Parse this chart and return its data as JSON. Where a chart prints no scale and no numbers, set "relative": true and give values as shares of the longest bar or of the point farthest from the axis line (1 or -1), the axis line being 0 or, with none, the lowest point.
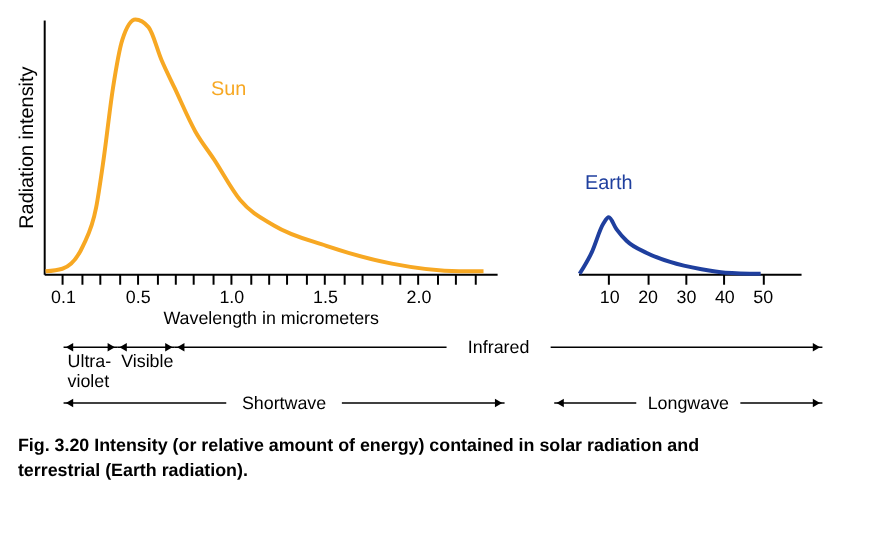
{
  "chart_data": [
    {
      "type": "line",
      "relative": true,
      "xlabel": "Wavelength in micrometers",
      "ylabel": "Radiation intensity",
      "xlim": [
        0,
        2.42
      ],
      "xticks": [
        0.1,
        {
          "value": 0.2,
          "label": null
        },
        {
          "value": 0.3,
          "label": null
        },
        {
          "value": 0.4,
          "label": null
        },
        0.5,
        {
          "value": 0.6,
          "label": null
        },
        {
          "value": 0.7,
          "label": null
        },
        {
          "value": 0.8,
          "label": null
        },
        {
          "value": 0.9,
          "label": null
        },
        {
          "value": 1,
          "label": "1.0"
        },
        {
          "value": 1.1,
          "label": null
        },
        {
          "value": 1.2,
          "label": null
        },
        {
          "value": 1.3,
          "label": null
        },
        {
          "value": 1.4,
          "label": null
        },
        1.5,
        {
          "value": 1.6,
          "label": null
        },
        {
          "value": 1.7,
          "label": null
        },
        {
          "value": 1.8,
          "label": null
        },
        {
          "value": 1.9,
          "label": null
        },
        {
          "value": 2,
          "label": "2.0"
        },
        {
          "value": 2.1,
          "label": null
        },
        {
          "value": 2.2,
          "label": null
        },
        {
          "value": 2.3,
          "label": null
        }
      ],
      "tick_labels": "x",
      "grid": false,
      "marker": "none",
      "line_style": "solid",
      "series": [
        {
          "name": "Sun",
          "color": "#f7a823",
          "x": [
            0.01,
            0.1,
            0.21,
            0.28,
            0.32,
            0.37,
            0.42,
            0.49,
            0.56,
            0.63,
            0.7,
            0.81,
            0.91,
            1.05,
            1.23,
            1.51,
            1.86,
            2.22,
            2.35
          ],
          "values": [
            0.01,
            0.02,
            0.11,
            0.26,
            0.45,
            0.73,
            0.92,
            1,
            0.97,
            0.84,
            0.73,
            0.56,
            0.45,
            0.29,
            0.19,
            0.11,
            0.04,
            0.01,
            0.01
          ]
        }
      ],
      "annotations": [
        "Ultra-violet",
        "Visible",
        "Infrared",
        "Shortwave",
        "Longwave",
        "Fig. 3.20 Intensity (or relative amount of energy) contained in solar radiation and terrestrial (Earth radiation)."
      ]
    },
    {
      "type": "line",
      "relative": true,
      "xlim": [
        2,
        60
      ],
      "xticks": [
        10,
        20,
        30,
        40,
        50
      ],
      "tick_labels": "x",
      "grid": false,
      "marker": "none",
      "line_style": "solid",
      "series": [
        {
          "name": "Earth",
          "color": "#1f3f9e",
          "x": [
            2.4,
            5.5,
            8.6,
            10,
            12,
            14.7,
            19.9,
            26,
            34.2,
            40.4,
            49.6
          ],
          "values": [
            0,
            0.37,
            0.89,
            1,
            0.79,
            0.58,
            0.37,
            0.21,
            0.08,
            0.02,
            0
          ]
        }
      ]
    }
  ]
}
